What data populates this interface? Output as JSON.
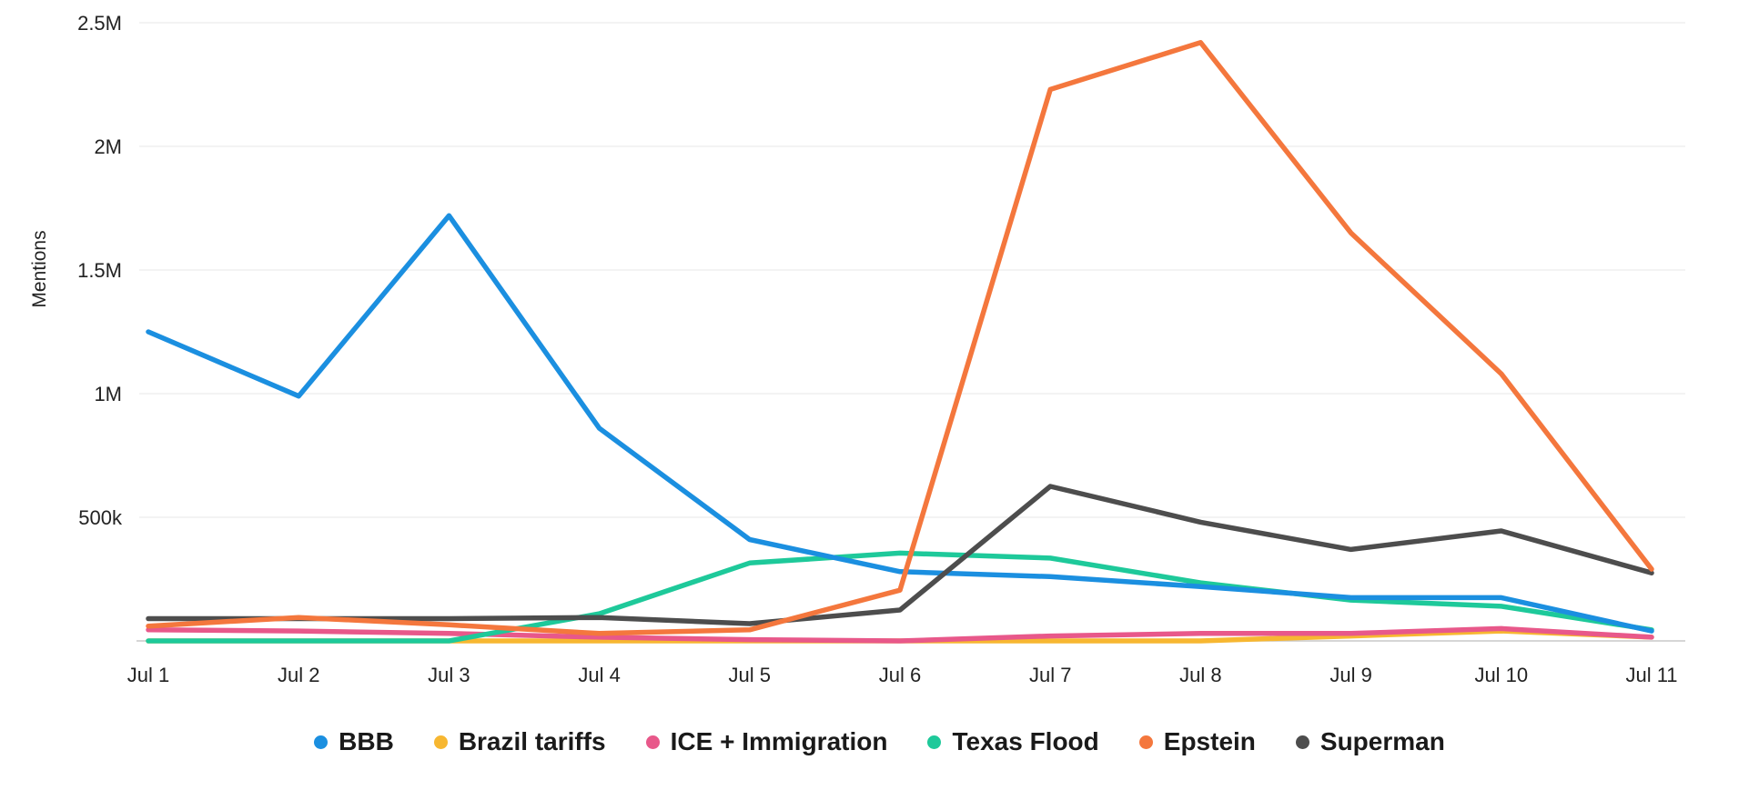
{
  "chart_data": {
    "type": "line",
    "title": "",
    "xlabel": "",
    "ylabel": "Mentions",
    "ylim": [
      0,
      2500000
    ],
    "y_ticks": [
      {
        "value": 500000,
        "label": "500k"
      },
      {
        "value": 1000000,
        "label": "1M"
      },
      {
        "value": 1500000,
        "label": "1.5M"
      },
      {
        "value": 2000000,
        "label": "2M"
      },
      {
        "value": 2500000,
        "label": "2.5M"
      }
    ],
    "categories": [
      "Jul 1",
      "Jul 2",
      "Jul 3",
      "Jul 4",
      "Jul 5",
      "Jul 6",
      "Jul 7",
      "Jul 8",
      "Jul 9",
      "Jul 10",
      "Jul 11"
    ],
    "grid": true,
    "legend_position": "bottom-center",
    "series": [
      {
        "name": "BBB",
        "color": "#1b8fe0",
        "values": [
          1250000,
          990000,
          1720000,
          860000,
          410000,
          280000,
          260000,
          220000,
          175000,
          175000,
          40000
        ]
      },
      {
        "name": "Brazil tariffs",
        "color": "#f7b731",
        "values": [
          0,
          0,
          0,
          0,
          0,
          0,
          0,
          0,
          20000,
          40000,
          15000
        ]
      },
      {
        "name": "ICE + Immigration",
        "color": "#e8588a",
        "values": [
          45000,
          40000,
          30000,
          15000,
          5000,
          0,
          20000,
          30000,
          30000,
          50000,
          15000
        ]
      },
      {
        "name": "Texas Flood",
        "color": "#1ec99a",
        "values": [
          0,
          0,
          0,
          110000,
          315000,
          355000,
          335000,
          235000,
          165000,
          140000,
          45000
        ]
      },
      {
        "name": "Epstein",
        "color": "#f4773d",
        "values": [
          60000,
          95000,
          65000,
          30000,
          45000,
          205000,
          2230000,
          2420000,
          1650000,
          1080000,
          290000
        ]
      },
      {
        "name": "Superman",
        "color": "#4d4d4d",
        "values": [
          90000,
          90000,
          90000,
          95000,
          70000,
          125000,
          625000,
          480000,
          370000,
          445000,
          275000
        ]
      }
    ]
  }
}
